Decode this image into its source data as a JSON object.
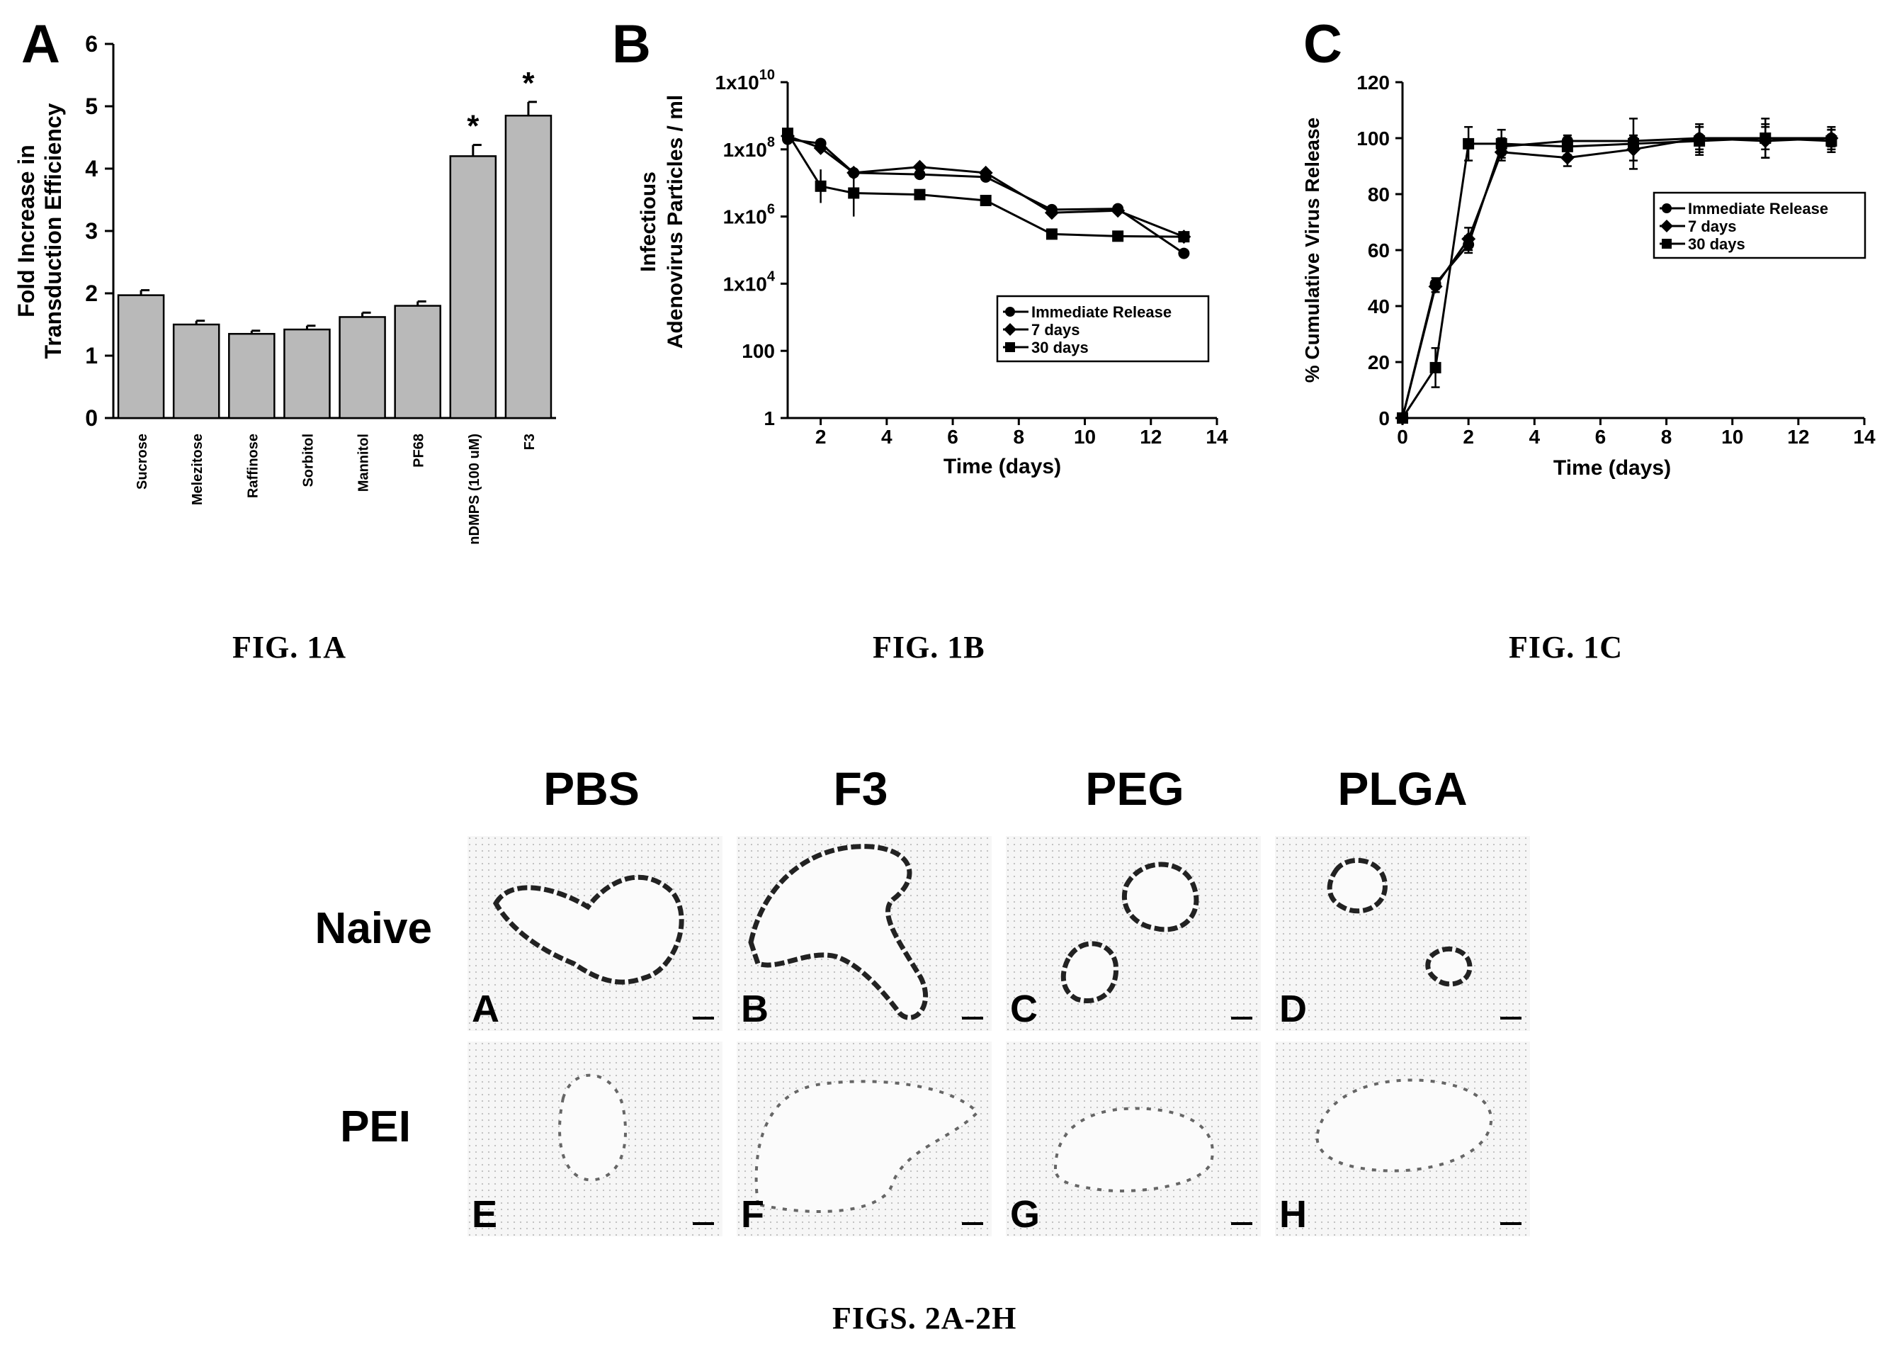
{
  "figure1": {
    "charts": [
      {
        "panel_letter": "A",
        "type": "bar",
        "ylabel": [
          "Fold Increase in",
          "Transduction Efficiency"
        ],
        "ylim": [
          0,
          6
        ],
        "yticks": [
          "0",
          "1",
          "2",
          "3",
          "4",
          "5",
          "6"
        ],
        "categories": [
          "Sucrose",
          "Melezitose",
          "Raffinose",
          "Sorbitol",
          "Mannitol",
          "PF68",
          "nDMPS (100 uM)",
          "F3"
        ],
        "values": [
          1.97,
          1.5,
          1.35,
          1.42,
          1.62,
          1.8,
          4.2,
          4.85
        ],
        "errors": [
          0.08,
          0.06,
          0.05,
          0.06,
          0.07,
          0.07,
          0.18,
          0.22
        ],
        "significance": [
          "",
          "",
          "",
          "",
          "",
          "",
          "*",
          "*"
        ],
        "bar_color": "#b9b9b9",
        "caption": "FIG. 1A"
      },
      {
        "panel_letter": "B",
        "type": "line",
        "ylabel": [
          "Infectious",
          "Adenovirus Particles / ml"
        ],
        "xlabel": "Time (days)",
        "yscale": "log",
        "ylim": [
          1,
          10000000000
        ],
        "yticks": [
          {
            "value": 1,
            "label": "1"
          },
          {
            "value": 100,
            "label": "100"
          },
          {
            "value": 10000,
            "label": "1x10",
            "sup": "4"
          },
          {
            "value": 1000000,
            "label": "1x10",
            "sup": "6"
          },
          {
            "value": 100000000,
            "label": "1x10",
            "sup": "8"
          },
          {
            "value": 10000000000,
            "label": "1x10",
            "sup": "10"
          }
        ],
        "xlim": [
          1,
          14
        ],
        "xticks": [
          "2",
          "4",
          "6",
          "8",
          "10",
          "12",
          "14"
        ],
        "legend_position": "lower-right",
        "series": [
          {
            "name": "Immediate Release",
            "marker": "circle",
            "x": [
              1,
              2,
              3,
              5,
              7,
              9,
              11,
              13
            ],
            "y": [
              200000000,
              150000000,
              20000000,
              18000000,
              15000000,
              1600000,
              1700000,
              80000
            ]
          },
          {
            "name": "7 days",
            "marker": "diamond",
            "x": [
              1,
              2,
              3,
              5,
              7,
              9,
              11,
              13
            ],
            "y": [
              250000000,
              110000000,
              20000000,
              30000000,
              20000000,
              1300000,
              1500000,
              250000
            ]
          },
          {
            "name": "30 days",
            "marker": "square",
            "x": [
              1,
              2,
              3,
              5,
              7,
              9,
              11,
              13
            ],
            "y": [
              300000000,
              8000000,
              5000000,
              4500000,
              3000000,
              300000,
              260000,
              250000
            ],
            "err": [
              0,
              0.5,
              0.7,
              0,
              0,
              0,
              0,
              0
            ]
          }
        ],
        "caption": "FIG. 1B"
      },
      {
        "panel_letter": "C",
        "type": "line",
        "ylabel": [
          "% Cumulative Virus Release"
        ],
        "xlabel": "Time (days)",
        "ylim": [
          0,
          120
        ],
        "yticks": [
          "0",
          "20",
          "40",
          "60",
          "80",
          "100",
          "120"
        ],
        "xlim": [
          0,
          14
        ],
        "xticks": [
          "0",
          "2",
          "4",
          "6",
          "8",
          "10",
          "12",
          "14"
        ],
        "legend_position": "right",
        "series": [
          {
            "name": "Immediate Release",
            "marker": "circle",
            "x": [
              0,
              1,
              2,
              3,
              5,
              7,
              9,
              11,
              13
            ],
            "y": [
              0,
              48,
              62,
              97,
              99,
              99,
              100,
              100,
              100
            ],
            "err": [
              0,
              2,
              3,
              3,
              2,
              2,
              4,
              4,
              3
            ]
          },
          {
            "name": "7 days",
            "marker": "diamond",
            "x": [
              0,
              1,
              2,
              3,
              5,
              7,
              9,
              11,
              13
            ],
            "y": [
              0,
              47,
              64,
              95,
              93,
              96,
              100,
              99,
              100
            ],
            "err": [
              0,
              2,
              4,
              3,
              3,
              4,
              5,
              6,
              4
            ]
          },
          {
            "name": "30 days",
            "marker": "square",
            "x": [
              0,
              1,
              2,
              3,
              5,
              7,
              9,
              11,
              13
            ],
            "y": [
              0,
              18,
              98,
              98,
              97,
              98,
              99,
              100,
              99
            ],
            "err": [
              0,
              7,
              6,
              5,
              3,
              9,
              5,
              7,
              4
            ]
          }
        ],
        "caption": "FIG. 1C"
      }
    ]
  },
  "figure2": {
    "column_headers": [
      "PBS",
      "F3",
      "PEG",
      "PLGA"
    ],
    "row_headers": [
      "Naive",
      "PEI"
    ],
    "panels": [
      "A",
      "B",
      "C",
      "D",
      "E",
      "F",
      "G",
      "H"
    ],
    "caption": "FIGS. 2A-2H"
  }
}
